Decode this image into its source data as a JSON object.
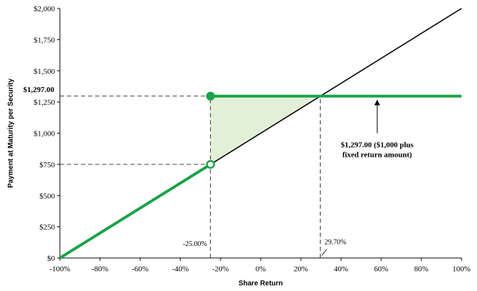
{
  "chart_data": {
    "type": "line",
    "title": "",
    "xlabel": "Share Return",
    "ylabel": "Payment at Maturity per Security",
    "xlim": [
      -100,
      100
    ],
    "ylim": [
      0,
      2000
    ],
    "x_ticks": [
      -100,
      -80,
      -60,
      -40,
      -20,
      0,
      20,
      40,
      60,
      80,
      100
    ],
    "x_tick_labels": [
      "-100%",
      "-80%",
      "-60%",
      "-40%",
      "-20%",
      "0%",
      "20%",
      "40%",
      "60%",
      "80%",
      "100%"
    ],
    "y_ticks": [
      0,
      250,
      500,
      750,
      1000,
      1250,
      1500,
      1750,
      2000
    ],
    "y_tick_labels": [
      "$0",
      "$250",
      "$500",
      "$750",
      "$1,000",
      "$1,250",
      "$1,500",
      "$1,750",
      "$2,000"
    ],
    "grid": false,
    "series": [
      {
        "x": [
          -100,
          100
        ],
        "y": [
          0,
          2000
        ],
        "color": "#000000"
      },
      {
        "x": [
          -100,
          -25
        ],
        "y": [
          0,
          750
        ],
        "color": "#1aa34a"
      },
      {
        "x": [
          -25,
          100
        ],
        "y": [
          1297,
          1297
        ],
        "color": "#1aa34a"
      }
    ],
    "shaded_region": {
      "points": [
        [
          -25,
          1297
        ],
        [
          29.7,
          1297
        ],
        [
          -25,
          750
        ]
      ],
      "color": "#e3f0d8"
    },
    "markers": [
      {
        "x": -25,
        "y": 1297,
        "style": "filled",
        "color": "#1aa34a"
      },
      {
        "x": -25,
        "y": 750,
        "style": "open",
        "color": "#1aa34a"
      }
    ],
    "reference_lines": [
      {
        "from": [
          -100,
          1297
        ],
        "to": [
          -25,
          1297
        ]
      },
      {
        "from": [
          -100,
          750
        ],
        "to": [
          -25,
          750
        ]
      },
      {
        "from": [
          -25,
          0
        ],
        "to": [
          -25,
          1297
        ]
      },
      {
        "from": [
          29.7,
          0
        ],
        "to": [
          29.7,
          1297
        ]
      }
    ],
    "annotations": {
      "y_marker_label": "$1,297.00",
      "x_marker_left": "-25.00%",
      "x_marker_right": "29.70%",
      "callout_line1": "$1,297.00 ($1,000 plus",
      "callout_line2": "fixed return amount)"
    }
  }
}
